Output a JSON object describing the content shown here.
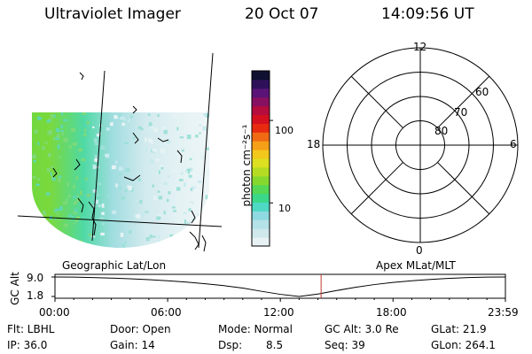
{
  "header": {
    "title": "Ultraviolet Imager",
    "date": "20 Oct 07",
    "time": "14:09:56 UT"
  },
  "colorbar": {
    "unit_label": "photon cm⁻²s⁻¹",
    "scale": "log",
    "range": [
      3,
      400
    ],
    "ticks": [
      {
        "value": 10,
        "label": "10"
      },
      {
        "value": 100,
        "label": "100"
      }
    ],
    "colors": [
      "#e8f2f4",
      "#cfe8ec",
      "#b4e2e8",
      "#8fdae0",
      "#4fd9c4",
      "#3cd88a",
      "#55d855",
      "#86d82e",
      "#b4dc22",
      "#dce020",
      "#f2c81c",
      "#f5a018",
      "#f06a14",
      "#e82a10",
      "#d41020",
      "#b40c3c",
      "#881060",
      "#5a1478",
      "#2e105a",
      "#101030"
    ]
  },
  "polar": {
    "mlt_labels": [
      {
        "hour": 12,
        "label": "12"
      },
      {
        "hour": 18,
        "label": "18"
      },
      {
        "hour": 6,
        "label": "6"
      },
      {
        "hour": 0,
        "label": "0"
      }
    ],
    "lat_labels": [
      {
        "lat": 60,
        "label": "60"
      },
      {
        "lat": 70,
        "label": "70"
      },
      {
        "lat": 80,
        "label": "80"
      }
    ],
    "rings": [
      50,
      60,
      70,
      80
    ]
  },
  "timeline": {
    "left_title": "Geographic Lat/Lon",
    "right_title": "Apex MLat/MLT",
    "ylabel": "GC Alt",
    "y_ticks": [
      {
        "value": 9.0,
        "label": "9.0"
      },
      {
        "value": 1.8,
        "label": "1.8"
      }
    ],
    "x_ticks": [
      {
        "hour": 0,
        "label": "00:00"
      },
      {
        "hour": 6,
        "label": "06:00"
      },
      {
        "hour": 12,
        "label": "12:00"
      },
      {
        "hour": 18,
        "label": "18:00"
      },
      {
        "hour": 23.983,
        "label": "23:59"
      }
    ],
    "altitude_trace": {
      "t": [
        0,
        1,
        2,
        3,
        4,
        5,
        6,
        7,
        8,
        9,
        10,
        11,
        12,
        13,
        14,
        15,
        16,
        17,
        18,
        19,
        20,
        21,
        22,
        23,
        23.983
      ],
      "alt": [
        9.0,
        8.95,
        8.8,
        8.6,
        8.35,
        8.0,
        7.6,
        7.1,
        6.5,
        5.8,
        4.9,
        3.7,
        2.6,
        1.8,
        2.7,
        4.0,
        5.2,
        6.2,
        7.0,
        7.6,
        8.1,
        8.5,
        8.8,
        8.95,
        9.0
      ]
    },
    "current_time_hour": 14.17,
    "current_marker_color": "#c0392b"
  },
  "status": {
    "flt": "Flt: LBHL",
    "ip": "IP: 36.0",
    "door": "Door: Open",
    "gain": "Gain: 14",
    "mode": "Mode: Normal",
    "dsp_label": "Dsp:",
    "dsp_value": "8.5",
    "gc_alt": "GC Alt: 3.0 Re",
    "seq": "Seq: 39",
    "glat": "GLat:  21.9",
    "glon": "GLon: 264.1"
  }
}
